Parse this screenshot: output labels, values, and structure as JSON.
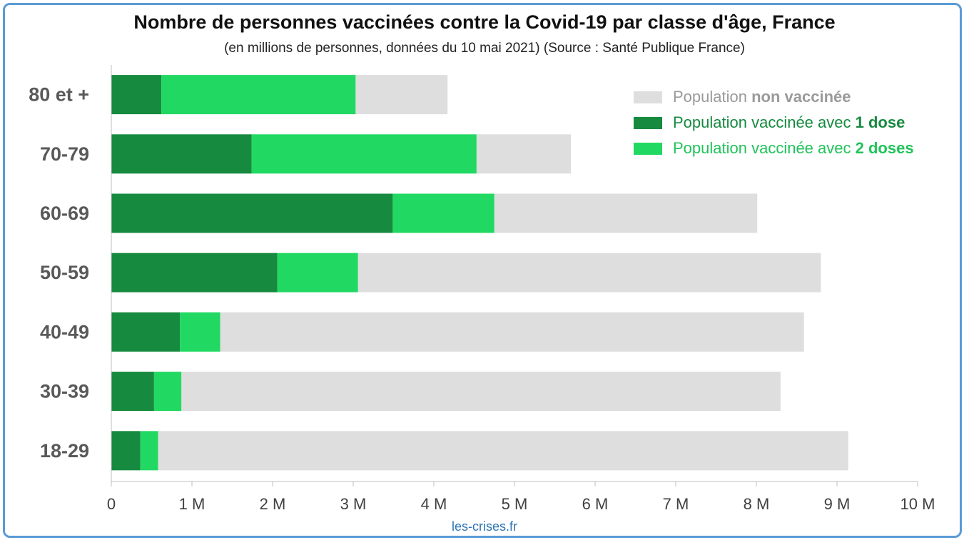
{
  "title": "Nombre de personnes vaccinées contre la Covid-19 par classe d'âge, France",
  "subtitle": "(en millions de personnes, données du 10 mai 2021) (Source : Santé Publique France)",
  "source_credit": "les-crises.fr",
  "colors": {
    "frame": "#5b9bd5",
    "non_vaccinated": "#dedede",
    "one_dose": "#168a3f",
    "two_doses": "#21d962",
    "non_vaccinated_text": "#9a9a9a",
    "one_dose_text": "#168a3f",
    "two_doses_text": "#21c35a"
  },
  "legend": [
    {
      "prefix": "Population ",
      "bold": "non vaccinée",
      "series": "non_vaccinated"
    },
    {
      "prefix": "Population vaccinée avec ",
      "bold": "1 dose",
      "series": "one_dose"
    },
    {
      "prefix": "Population vaccinée avec ",
      "bold": "2 doses",
      "series": "two_doses"
    }
  ],
  "chart_data": {
    "type": "bar",
    "orientation": "horizontal",
    "stacked": true,
    "title": "Nombre de personnes vaccinées contre la Covid-19 par classe d'âge, France",
    "subtitle": "(en millions de personnes, données du 10 mai 2021) (Source : Santé Publique France)",
    "unit": "millions",
    "categories": [
      "80 et +",
      "70-79",
      "60-69",
      "50-59",
      "40-49",
      "30-39",
      "18-29"
    ],
    "series": [
      {
        "name": "Population vaccinée avec 1 dose",
        "key": "one_dose",
        "values": [
          0.62,
          1.74,
          3.49,
          2.06,
          0.85,
          0.53,
          0.36
        ]
      },
      {
        "name": "Population vaccinée avec 2 doses",
        "key": "two_doses",
        "values": [
          2.41,
          2.79,
          1.26,
          1.0,
          0.5,
          0.34,
          0.22
        ]
      },
      {
        "name": "Population non vaccinée",
        "key": "non_vaccinated",
        "values": [
          1.14,
          1.17,
          3.26,
          5.74,
          7.24,
          7.43,
          8.56
        ]
      }
    ],
    "xlim": [
      0,
      10
    ],
    "xticks": [
      0,
      1,
      2,
      3,
      4,
      5,
      6,
      7,
      8,
      9,
      10
    ],
    "xtick_labels": [
      "0",
      "1 M",
      "2 M",
      "3 M",
      "4 M",
      "5 M",
      "6 M",
      "7 M",
      "8 M",
      "9 M",
      "10 M"
    ],
    "legend_position": "top-right",
    "grid": false
  }
}
